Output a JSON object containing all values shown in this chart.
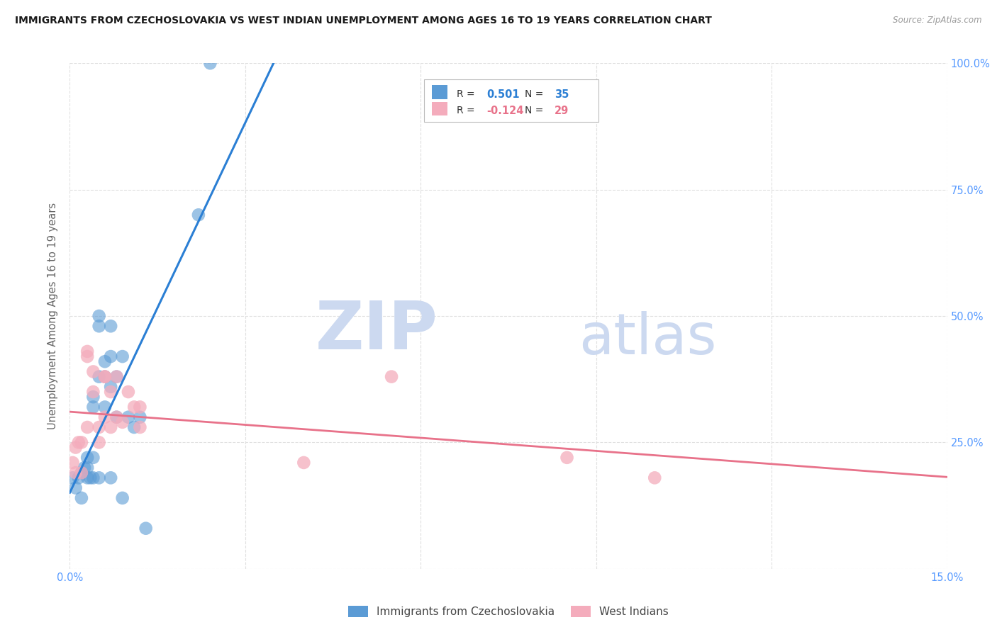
{
  "title": "IMMIGRANTS FROM CZECHOSLOVAKIA VS WEST INDIAN UNEMPLOYMENT AMONG AGES 16 TO 19 YEARS CORRELATION CHART",
  "source": "Source: ZipAtlas.com",
  "ylabel": "Unemployment Among Ages 16 to 19 years",
  "xlim": [
    0.0,
    0.15
  ],
  "ylim": [
    0.0,
    1.0
  ],
  "xticks": [
    0.0,
    0.03,
    0.06,
    0.09,
    0.12,
    0.15
  ],
  "yticks": [
    0.0,
    0.25,
    0.5,
    0.75,
    1.0
  ],
  "blue_R": 0.501,
  "blue_N": 35,
  "pink_R": -0.124,
  "pink_N": 29,
  "blue_color": "#5b9bd5",
  "pink_color": "#f4acbc",
  "blue_line_color": "#2b7fd4",
  "pink_line_color": "#e8728a",
  "watermark_zip": "ZIP",
  "watermark_atlas": "atlas",
  "watermark_color": "#ccd9f0",
  "legend_label_blue": "Immigrants from Czechoslovakia",
  "legend_label_pink": "West Indians",
  "blue_scatter_x": [
    0.0005,
    0.001,
    0.0015,
    0.002,
    0.002,
    0.0025,
    0.003,
    0.003,
    0.003,
    0.0035,
    0.004,
    0.004,
    0.004,
    0.004,
    0.005,
    0.005,
    0.005,
    0.005,
    0.006,
    0.006,
    0.006,
    0.007,
    0.007,
    0.007,
    0.007,
    0.008,
    0.008,
    0.009,
    0.009,
    0.01,
    0.011,
    0.012,
    0.013,
    0.022,
    0.024
  ],
  "blue_scatter_y": [
    0.18,
    0.16,
    0.18,
    0.19,
    0.14,
    0.2,
    0.22,
    0.2,
    0.18,
    0.18,
    0.34,
    0.32,
    0.22,
    0.18,
    0.5,
    0.48,
    0.38,
    0.18,
    0.41,
    0.38,
    0.32,
    0.48,
    0.42,
    0.36,
    0.18,
    0.38,
    0.3,
    0.42,
    0.14,
    0.3,
    0.28,
    0.3,
    0.08,
    0.7,
    1.0
  ],
  "pink_scatter_x": [
    0.0005,
    0.001,
    0.001,
    0.0015,
    0.002,
    0.002,
    0.003,
    0.003,
    0.003,
    0.004,
    0.004,
    0.005,
    0.005,
    0.006,
    0.006,
    0.006,
    0.007,
    0.007,
    0.008,
    0.008,
    0.009,
    0.01,
    0.011,
    0.012,
    0.012,
    0.04,
    0.055,
    0.085,
    0.1
  ],
  "pink_scatter_y": [
    0.21,
    0.24,
    0.19,
    0.25,
    0.25,
    0.19,
    0.43,
    0.42,
    0.28,
    0.39,
    0.35,
    0.28,
    0.25,
    0.38,
    0.38,
    0.3,
    0.35,
    0.28,
    0.38,
    0.3,
    0.29,
    0.35,
    0.32,
    0.28,
    0.32,
    0.21,
    0.38,
    0.22,
    0.18
  ],
  "background_color": "#ffffff",
  "grid_color": "#e0e0e0",
  "tick_color": "#5599ff",
  "axis_label_color": "#666666"
}
